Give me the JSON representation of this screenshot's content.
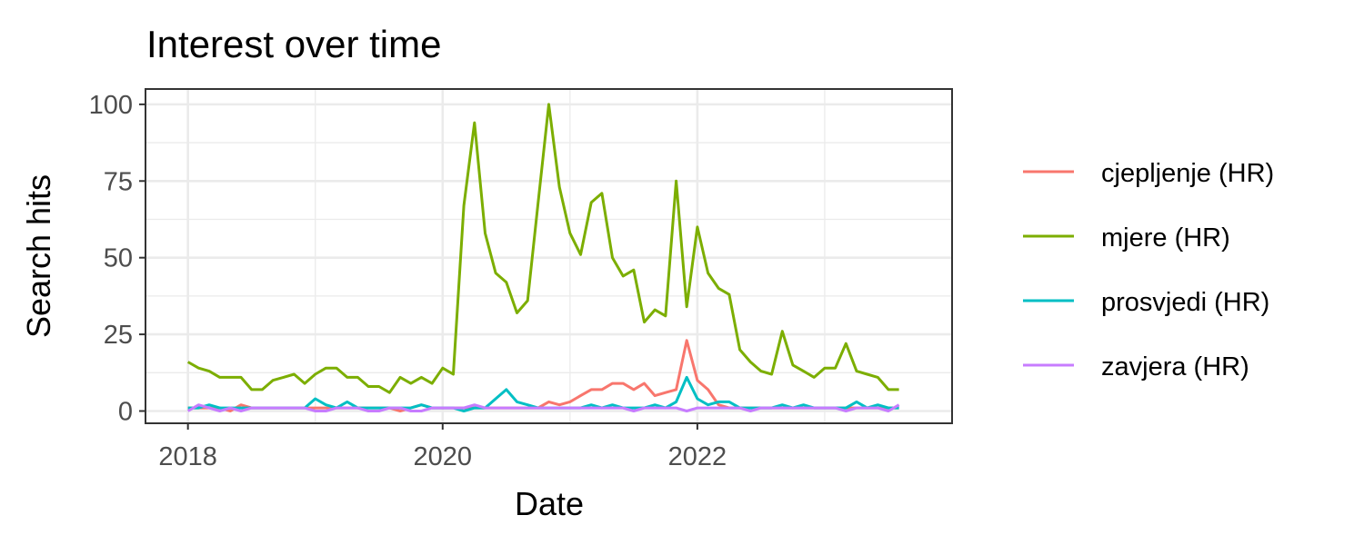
{
  "chart_data": {
    "type": "line",
    "title": "Interest over time",
    "xlabel": "Date",
    "ylabel": "Search hits",
    "x_start": "2018-01",
    "x_interval": "month",
    "x": [
      "2018-01",
      "2018-02",
      "2018-03",
      "2018-04",
      "2018-05",
      "2018-06",
      "2018-07",
      "2018-08",
      "2018-09",
      "2018-10",
      "2018-11",
      "2018-12",
      "2019-01",
      "2019-02",
      "2019-03",
      "2019-04",
      "2019-05",
      "2019-06",
      "2019-07",
      "2019-08",
      "2019-09",
      "2019-10",
      "2019-11",
      "2019-12",
      "2020-01",
      "2020-02",
      "2020-03",
      "2020-04",
      "2020-05",
      "2020-06",
      "2020-07",
      "2020-08",
      "2020-09",
      "2020-10",
      "2020-11",
      "2020-12",
      "2021-01",
      "2021-02",
      "2021-03",
      "2021-04",
      "2021-05",
      "2021-06",
      "2021-07",
      "2021-08",
      "2021-09",
      "2021-10",
      "2021-11",
      "2021-12",
      "2022-01",
      "2022-02",
      "2022-03",
      "2022-04",
      "2022-05",
      "2022-06",
      "2022-07",
      "2022-08",
      "2022-09",
      "2022-10",
      "2022-11",
      "2022-12",
      "2023-01",
      "2023-02",
      "2023-03",
      "2023-04",
      "2023-05",
      "2023-06",
      "2023-07",
      "2023-08"
    ],
    "xlim": [
      "2017-09",
      "2024-01"
    ],
    "ylim": [
      -4,
      105
    ],
    "x_ticks": [
      "2018",
      "2020",
      "2022"
    ],
    "y_ticks": [
      0,
      25,
      50,
      75,
      100
    ],
    "grid": true,
    "legend_position": "right",
    "series": [
      {
        "name": "cjepljenje (HR)",
        "color": "#F8766D",
        "values": [
          1,
          1,
          1,
          1,
          0,
          2,
          1,
          1,
          1,
          1,
          1,
          1,
          1,
          1,
          1,
          1,
          1,
          1,
          1,
          1,
          0,
          1,
          2,
          1,
          1,
          1,
          1,
          1,
          1,
          1,
          1,
          1,
          1,
          1,
          3,
          2,
          3,
          5,
          7,
          7,
          9,
          9,
          7,
          9,
          5,
          6,
          7,
          23,
          10,
          7,
          2,
          1,
          1,
          1,
          1,
          1,
          1,
          1,
          1,
          1,
          1,
          1,
          1,
          1,
          1,
          1,
          1,
          1
        ]
      },
      {
        "name": "mjere (HR)",
        "color": "#7CAE00",
        "values": [
          16,
          14,
          13,
          11,
          11,
          11,
          7,
          7,
          10,
          11,
          12,
          9,
          12,
          14,
          14,
          11,
          11,
          8,
          8,
          6,
          11,
          9,
          11,
          9,
          14,
          12,
          67,
          94,
          58,
          45,
          42,
          32,
          36,
          68,
          100,
          73,
          58,
          51,
          68,
          71,
          50,
          44,
          46,
          29,
          33,
          31,
          75,
          34,
          60,
          45,
          40,
          38,
          20,
          16,
          13,
          12,
          26,
          15,
          13,
          11,
          14,
          14,
          22,
          13,
          12,
          11,
          7,
          7
        ]
      },
      {
        "name": "prosvjedi (HR)",
        "color": "#00BFC4",
        "values": [
          1,
          1,
          2,
          1,
          1,
          1,
          1,
          1,
          1,
          1,
          1,
          1,
          4,
          2,
          1,
          3,
          1,
          1,
          1,
          1,
          1,
          1,
          2,
          1,
          1,
          1,
          0,
          1,
          1,
          4,
          7,
          3,
          2,
          1,
          1,
          1,
          1,
          1,
          2,
          1,
          2,
          1,
          1,
          1,
          2,
          1,
          3,
          11,
          4,
          2,
          3,
          3,
          1,
          1,
          1,
          1,
          2,
          1,
          2,
          1,
          1,
          1,
          1,
          3,
          1,
          2,
          1,
          1
        ]
      },
      {
        "name": "zavjera (HR)",
        "color": "#C77CFF",
        "values": [
          0,
          2,
          1,
          0,
          1,
          0,
          1,
          1,
          1,
          1,
          1,
          1,
          0,
          0,
          1,
          1,
          1,
          0,
          0,
          1,
          1,
          0,
          0,
          1,
          1,
          1,
          1,
          2,
          1,
          1,
          1,
          1,
          1,
          1,
          1,
          1,
          1,
          1,
          1,
          1,
          1,
          1,
          0,
          1,
          1,
          1,
          1,
          0,
          1,
          1,
          1,
          1,
          1,
          0,
          1,
          1,
          1,
          1,
          1,
          1,
          1,
          1,
          0,
          1,
          1,
          1,
          0,
          2
        ]
      }
    ]
  }
}
